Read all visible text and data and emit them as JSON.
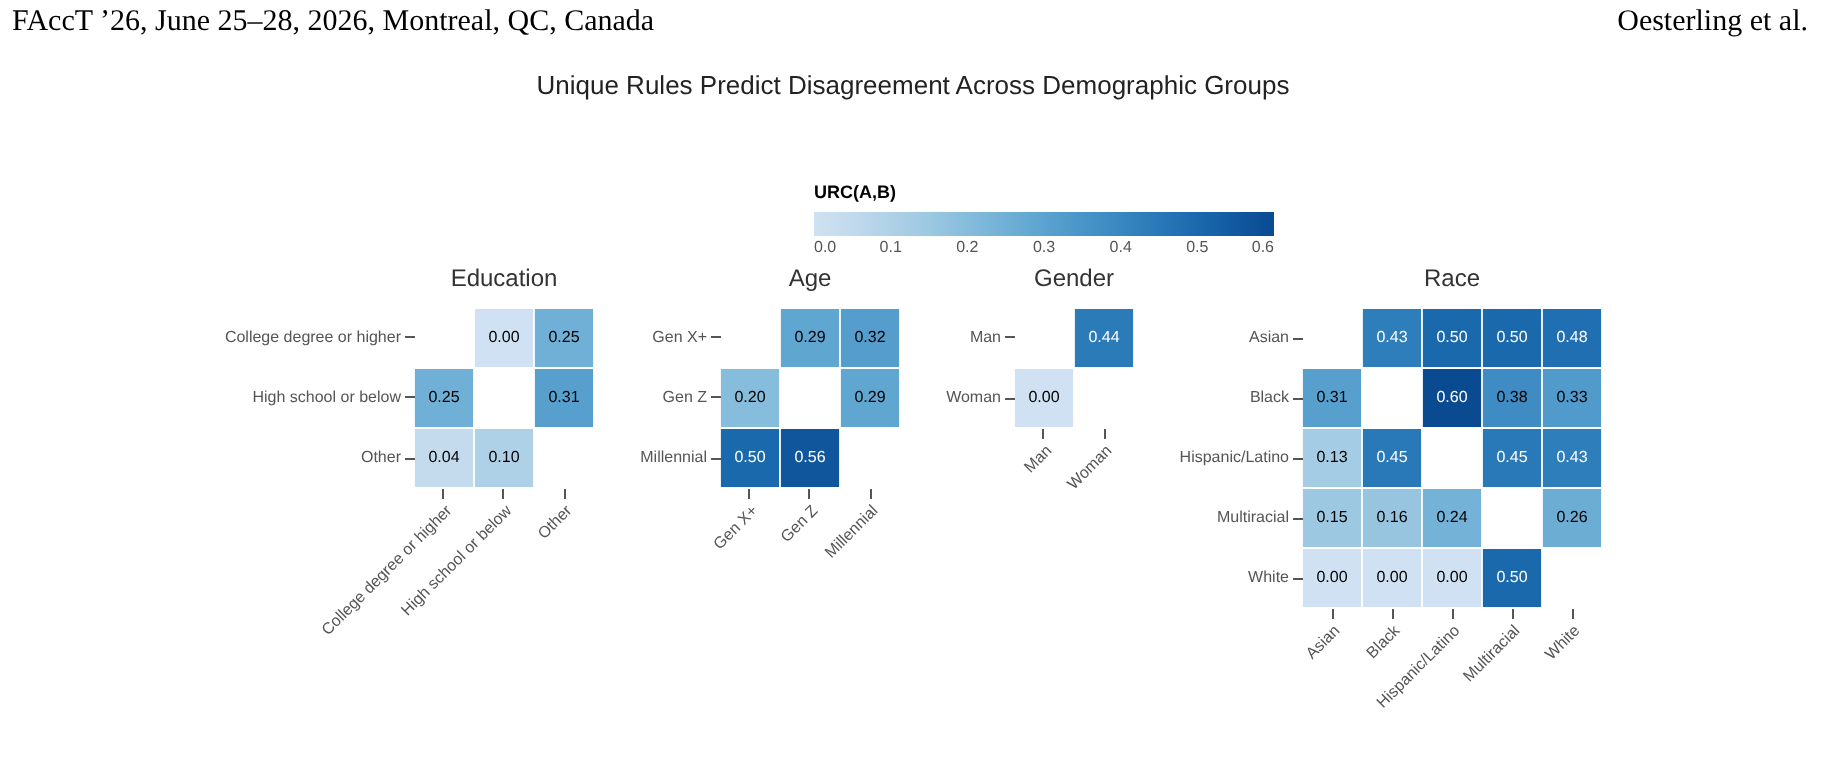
{
  "chart_data": [
    {
      "type": "heatmap",
      "title": "Unique Rules Predict Disagreement Across Demographic Groups",
      "clabel": "URC(A,B)",
      "clim": [
        0,
        0.6
      ],
      "cticks": [
        {
          "value": 0,
          "label": "0.0"
        },
        0.1,
        0.2,
        0.3,
        0.4,
        0.5,
        0.6
      ],
      "annotations": [
        "FAccT ’26, June 25–28, 2026, Montreal, QC, Canada",
        "Oesterling et al."
      ],
      "subtitle": "Education",
      "categories": [
        "College degree or higher",
        "High school or below",
        "Other"
      ],
      "y_categories": [
        "College degree or higher",
        "High school or below",
        "Other"
      ],
      "cells": [
        [
          null,
          0,
          0.25
        ],
        [
          0.25,
          null,
          0.31
        ],
        [
          0.04,
          0.1,
          null
        ]
      ],
      "cell_labels": [
        [
          null,
          "0.00",
          "0.25"
        ],
        [
          "0.25",
          null,
          "0.31"
        ],
        [
          "0.04",
          "0.10",
          null
        ]
      ]
    },
    {
      "type": "heatmap",
      "subtitle": "Age",
      "categories": [
        "Gen X+",
        "Gen Z",
        "Millennial"
      ],
      "y_categories": [
        "Gen X+",
        "Gen Z",
        "Millennial"
      ],
      "cells": [
        [
          null,
          0.29,
          0.32
        ],
        [
          0.2,
          null,
          0.29
        ],
        [
          0.5,
          0.56,
          null
        ]
      ],
      "cell_labels": [
        [
          null,
          "0.29",
          "0.32"
        ],
        [
          "0.20",
          null,
          "0.29"
        ],
        [
          "0.50",
          "0.56",
          null
        ]
      ]
    },
    {
      "type": "heatmap",
      "subtitle": "Gender",
      "categories": [
        "Man",
        "Woman"
      ],
      "y_categories": [
        "Man",
        "Woman"
      ],
      "cells": [
        [
          null,
          0.44
        ],
        [
          0,
          null
        ]
      ],
      "cell_labels": [
        [
          null,
          "0.44"
        ],
        [
          "0.00",
          null
        ]
      ]
    },
    {
      "type": "heatmap",
      "subtitle": "Race",
      "categories": [
        "Asian",
        "Black",
        "Hispanic/Latino",
        "Multiracial",
        "White"
      ],
      "y_categories": [
        "Asian",
        "Black",
        "Hispanic/Latino",
        "Multiracial",
        "White"
      ],
      "cells": [
        [
          null,
          0.43,
          0.5,
          0.5,
          0.48
        ],
        [
          0.31,
          null,
          0.6,
          0.38,
          0.33
        ],
        [
          0.13,
          0.45,
          null,
          0.45,
          0.43
        ],
        [
          0.15,
          0.16,
          0.24,
          null,
          0.26
        ],
        [
          0,
          0,
          0,
          0.5,
          null
        ]
      ],
      "cell_labels": [
        [
          null,
          "0.43",
          "0.50",
          "0.50",
          "0.48"
        ],
        [
          "0.31",
          null,
          "0.60",
          "0.38",
          "0.33"
        ],
        [
          "0.13",
          "0.45",
          null,
          "0.45",
          "0.43"
        ],
        [
          "0.15",
          "0.16",
          "0.24",
          null,
          "0.26"
        ],
        [
          "0.00",
          "0.00",
          "0.00",
          "0.50",
          null
        ]
      ]
    }
  ]
}
